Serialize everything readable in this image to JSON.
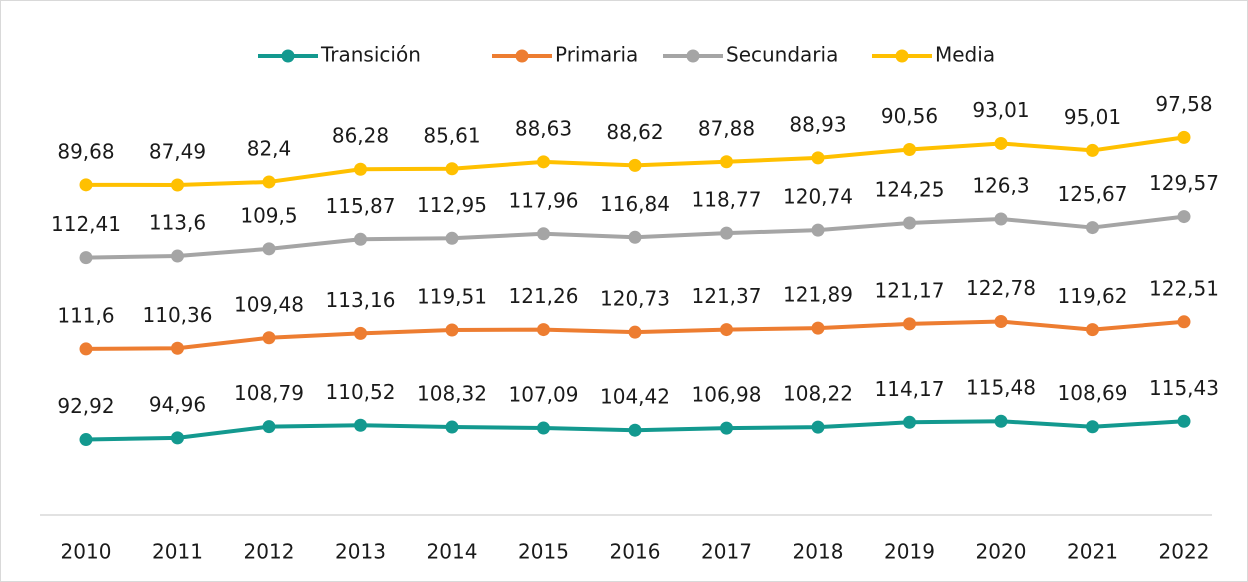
{
  "chart_data": {
    "type": "line",
    "stacked": true,
    "categories": [
      "2010",
      "2011",
      "2012",
      "2013",
      "2014",
      "2015",
      "2016",
      "2017",
      "2018",
      "2019",
      "2020",
      "2021",
      "2022"
    ],
    "ylim": [
      0,
      500
    ],
    "series": [
      {
        "name": "Transición",
        "color": "#13998f",
        "values": [
          92.92,
          94.96,
          108.79,
          110.52,
          108.32,
          107.09,
          104.42,
          106.98,
          108.22,
          114.17,
          115.48,
          108.69,
          115.43
        ],
        "value_labels": [
          "92,92",
          "94,96",
          "108,79",
          "110,52",
          "108,32",
          "107,09",
          "104,42",
          "106,98",
          "108,22",
          "114,17",
          "115,48",
          "108,69",
          "115,43"
        ]
      },
      {
        "name": "Primaria",
        "color": "#ed7d31",
        "values": [
          111.6,
          110.36,
          109.48,
          113.16,
          119.51,
          121.26,
          120.73,
          121.37,
          121.89,
          121.17,
          122.78,
          119.62,
          122.51
        ],
        "value_labels": [
          "111,6",
          "110,36",
          "109,48",
          "113,16",
          "119,51",
          "121,26",
          "120,73",
          "121,37",
          "121,89",
          "121,17",
          "122,78",
          "119,62",
          "122,51"
        ]
      },
      {
        "name": "Secundaria",
        "color": "#a5a5a5",
        "values": [
          112.41,
          113.6,
          109.5,
          115.87,
          112.95,
          117.96,
          116.84,
          118.77,
          120.74,
          124.25,
          126.3,
          125.67,
          129.57
        ],
        "value_labels": [
          "112,41",
          "113,6",
          "109,5",
          "115,87",
          "112,95",
          "117,96",
          "116,84",
          "118,77",
          "120,74",
          "124,25",
          "126,3",
          "125,67",
          "129,57"
        ]
      },
      {
        "name": "Media",
        "color": "#ffc000",
        "values": [
          89.68,
          87.49,
          82.4,
          86.28,
          85.61,
          88.63,
          88.62,
          87.88,
          88.93,
          90.56,
          93.01,
          95.01,
          97.58
        ],
        "value_labels": [
          "89,68",
          "87,49",
          "82,4",
          "86,28",
          "85,61",
          "88,63",
          "88,62",
          "87,88",
          "88,93",
          "90,56",
          "93,01",
          "95,01",
          "97,58"
        ]
      }
    ]
  }
}
